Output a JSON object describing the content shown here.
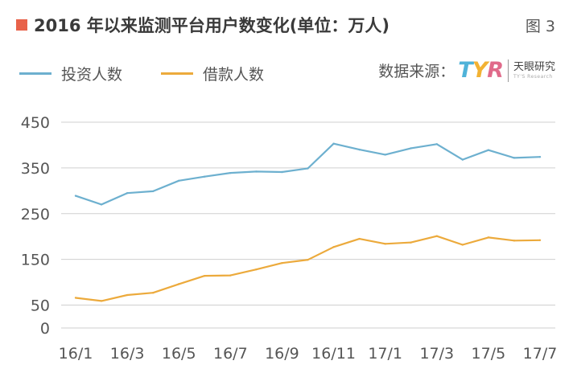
{
  "title": "2016 年以来监测平台用户数变化(单位：万人)",
  "figure_label": "图 3",
  "source_label": "数据来源：",
  "logo": {
    "mark_t": "T",
    "mark_y": "Y",
    "mark_r": "R",
    "name_cn": "天眼研究",
    "name_en": "TY'S Research"
  },
  "colors": {
    "title_square": "#e8624a",
    "series_invest": "#6db0cf",
    "series_borrow": "#ecaa3c",
    "grid": "#cfcfcf"
  },
  "chart_data": {
    "type": "line",
    "title": "2016 年以来监测平台用户数变化(单位：万人)",
    "xlabel": "",
    "ylabel": "",
    "ylim": [
      0,
      450
    ],
    "yticks": [
      0,
      50,
      150,
      250,
      350,
      450
    ],
    "grid": true,
    "legend_placement": "top-left",
    "x": [
      "16/1",
      "16/2",
      "16/3",
      "16/4",
      "16/5",
      "16/6",
      "16/7",
      "16/8",
      "16/9",
      "16/10",
      "16/11",
      "16/12",
      "17/1",
      "17/2",
      "17/3",
      "17/4",
      "17/5",
      "17/6",
      "17/7"
    ],
    "xtick_labels": [
      "16/1",
      "16/3",
      "16/5",
      "16/7",
      "16/9",
      "16/11",
      "17/1",
      "17/3",
      "17/5",
      "17/7"
    ],
    "series": [
      {
        "name": "投资人数",
        "color": "#6db0cf",
        "values": [
          289,
          270,
          295,
          299,
          322,
          331,
          339,
          342,
          341,
          349,
          403,
          390,
          379,
          393,
          402,
          368,
          389,
          372,
          374
        ]
      },
      {
        "name": "借款人数",
        "color": "#ecaa3c",
        "values": [
          66,
          59,
          72,
          77,
          96,
          114,
          115,
          128,
          142,
          149,
          177,
          195,
          184,
          187,
          201,
          182,
          198,
          191,
          192
        ]
      }
    ]
  }
}
